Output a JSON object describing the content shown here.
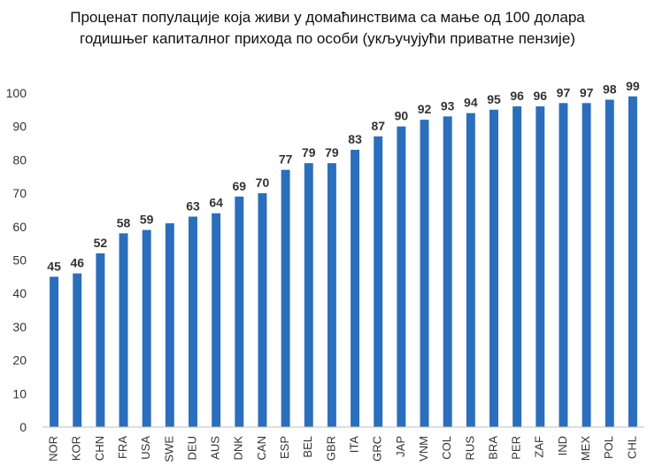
{
  "chart_data": {
    "type": "bar",
    "title_lines": [
      "Проценат популације која живи у домаћинствима са мање од 100 долара",
      "годишњег капиталног прихода по особи (укључујући приватне пензије)"
    ],
    "categories": [
      "NOR",
      "KOR",
      "CHN",
      "FRA",
      "USA",
      "SWE",
      "DEU",
      "AUS",
      "DNK",
      "CAN",
      "ESP",
      "BEL",
      "GBR",
      "ITA",
      "GRC",
      "JAP",
      "VNM",
      "COL",
      "RUS",
      "BRA",
      "PER",
      "ZAF",
      "IND",
      "MEX",
      "POL",
      "CHL"
    ],
    "values": [
      45,
      46,
      52,
      58,
      59,
      61,
      63,
      64,
      69,
      70,
      77,
      79,
      79,
      83,
      87,
      90,
      92,
      93,
      94,
      95,
      96,
      96,
      97,
      97,
      98,
      99
    ],
    "data_labels": [
      "45",
      "46",
      "52",
      "58",
      "59",
      "",
      "63",
      "64",
      "69",
      "70",
      "77",
      "79",
      "79",
      "83",
      "87",
      "90",
      "92",
      "93",
      "94",
      "95",
      "96",
      "96",
      "97",
      "97",
      "98",
      "99"
    ],
    "ylim": [
      0,
      100
    ],
    "yticks": [
      0,
      10,
      20,
      30,
      40,
      50,
      60,
      70,
      80,
      90,
      100
    ],
    "xlabel": "",
    "ylabel": "",
    "grid": false,
    "bar_color": "#2a6ebd"
  }
}
